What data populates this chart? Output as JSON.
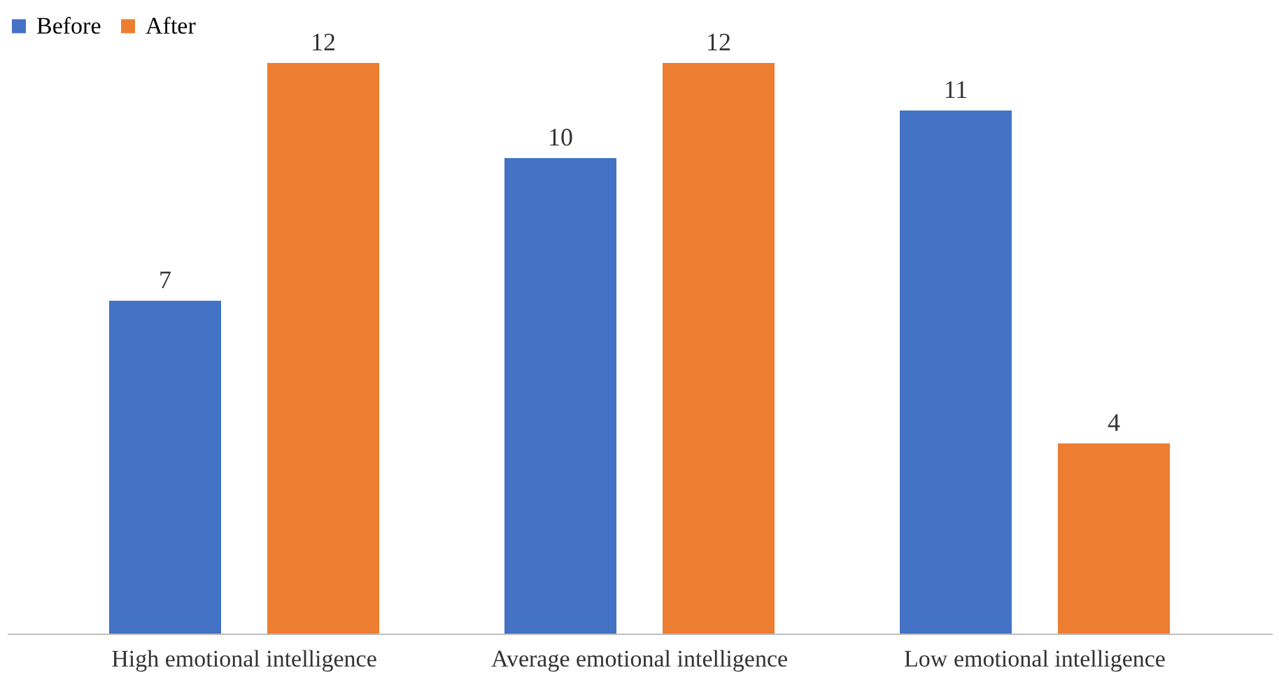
{
  "chart_data": {
    "type": "bar",
    "categories": [
      "High emotional intelligence",
      "Average emotional intelligence",
      "Low emotional intelligence"
    ],
    "series": [
      {
        "name": "Before",
        "color": "#4472c4",
        "values": [
          7,
          10,
          11
        ]
      },
      {
        "name": "After",
        "color": "#ed7d31",
        "values": [
          12,
          12,
          4
        ]
      }
    ],
    "data_labels": true,
    "legend": "top",
    "grid": false
  }
}
